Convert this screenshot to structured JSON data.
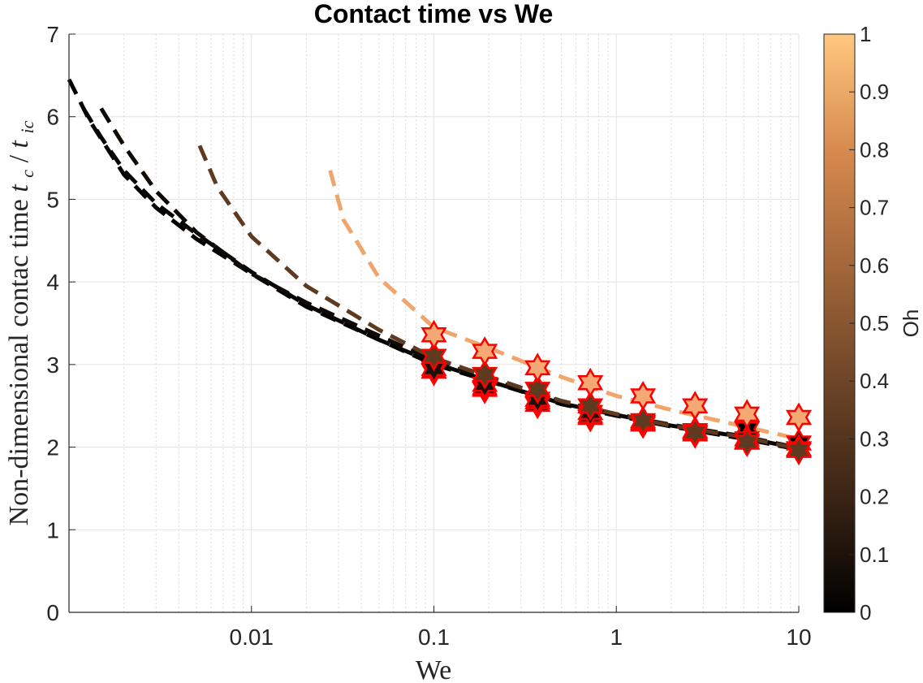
{
  "chart_data": {
    "type": "line",
    "title": "Contact time vs We",
    "xlabel": "We",
    "ylabel_text": "Non-dimensional contac time ",
    "ylabel_math": {
      "t1": "t",
      "s1": "c",
      "slash": "/",
      "t2": "t",
      "s2": "ic"
    },
    "xscale": "log",
    "xlim": [
      0.001,
      10
    ],
    "ylim": [
      0,
      7
    ],
    "xticks": [
      {
        "value": 0.01,
        "label": "0.01"
      },
      {
        "value": 0.1,
        "label": "0.1"
      },
      {
        "value": 1,
        "label": "1"
      },
      {
        "value": 10,
        "label": "10"
      }
    ],
    "yticks": [
      {
        "value": 0,
        "label": "0"
      },
      {
        "value": 1,
        "label": "1"
      },
      {
        "value": 2,
        "label": "2"
      },
      {
        "value": 3,
        "label": "3"
      },
      {
        "value": 4,
        "label": "4"
      },
      {
        "value": 5,
        "label": "5"
      },
      {
        "value": 6,
        "label": "6"
      },
      {
        "value": 7,
        "label": "7"
      }
    ],
    "grid": true,
    "colorbar": {
      "label": "Oh",
      "range": [
        0,
        1
      ],
      "ticks": [
        {
          "value": 0,
          "label": "0"
        },
        {
          "value": 0.1,
          "label": "0.1"
        },
        {
          "value": 0.2,
          "label": "0.2"
        },
        {
          "value": 0.3,
          "label": "0.3"
        },
        {
          "value": 0.4,
          "label": "0.4"
        },
        {
          "value": 0.5,
          "label": "0.5"
        },
        {
          "value": 0.6,
          "label": "0.6"
        },
        {
          "value": 0.7,
          "label": "0.7"
        },
        {
          "value": 0.8,
          "label": "0.8"
        },
        {
          "value": 0.9,
          "label": "0.9"
        },
        {
          "value": 1,
          "label": "1"
        }
      ],
      "colors": [
        "#000000",
        "#3a2414",
        "#6e4527",
        "#a3673a",
        "#d78a4e",
        "#ffc880"
      ]
    },
    "model_curves": [
      {
        "oh": 0.01,
        "color": "#000000",
        "x": [
          0.001,
          0.0013,
          0.002,
          0.003,
          0.005,
          0.01,
          0.02,
          0.05,
          0.1,
          0.2,
          0.5,
          1,
          2,
          5,
          10
        ],
        "y": [
          6.45,
          5.95,
          5.3,
          4.9,
          4.52,
          4.1,
          3.7,
          3.3,
          3.0,
          2.8,
          2.52,
          2.38,
          2.25,
          2.1,
          1.97
        ]
      },
      {
        "oh": 0.02,
        "color": "#080604",
        "x": [
          0.0012,
          0.0015,
          0.002,
          0.003,
          0.005,
          0.01,
          0.02,
          0.05,
          0.1,
          0.2,
          0.5,
          1,
          2,
          5,
          10
        ],
        "y": [
          6.1,
          5.75,
          5.35,
          4.95,
          4.58,
          4.12,
          3.72,
          3.3,
          3.02,
          2.8,
          2.53,
          2.39,
          2.26,
          2.12,
          1.98
        ]
      },
      {
        "oh": 0.04,
        "color": "#0f0a06",
        "x": [
          0.0015,
          0.002,
          0.003,
          0.005,
          0.01,
          0.02,
          0.05,
          0.1,
          0.2,
          0.5,
          1,
          2,
          5,
          10
        ],
        "y": [
          6.1,
          5.65,
          5.1,
          4.6,
          4.1,
          3.75,
          3.35,
          3.05,
          2.82,
          2.55,
          2.4,
          2.27,
          2.13,
          1.99
        ]
      },
      {
        "oh": 0.28,
        "color": "#5e3a20",
        "x": [
          0.0052,
          0.0065,
          0.01,
          0.02,
          0.05,
          0.1,
          0.2,
          0.5,
          1,
          2,
          5,
          10
        ],
        "y": [
          5.65,
          5.15,
          4.55,
          3.95,
          3.42,
          3.08,
          2.85,
          2.56,
          2.4,
          2.26,
          2.12,
          1.98
        ]
      },
      {
        "oh": 0.78,
        "color": "#f0a56c",
        "x": [
          0.027,
          0.032,
          0.05,
          0.1,
          0.2,
          0.5,
          1,
          2,
          5,
          10
        ],
        "y": [
          5.35,
          4.75,
          4.05,
          3.45,
          3.2,
          2.85,
          2.62,
          2.45,
          2.25,
          2.1
        ]
      }
    ],
    "simulation_points": [
      {
        "oh": 0.01,
        "color": "#000000",
        "x": [
          0.1,
          0.19,
          0.37,
          0.72,
          1.4,
          2.7,
          5.2,
          10
        ],
        "y": [
          2.92,
          2.7,
          2.52,
          2.36,
          2.28,
          2.18,
          2.22,
          2.05
        ]
      },
      {
        "oh": 0.02,
        "color": "#0a0604",
        "x": [
          0.1,
          0.19,
          0.37,
          0.72,
          1.4,
          2.7,
          5.2,
          10
        ],
        "y": [
          2.92,
          2.72,
          2.55,
          2.38,
          2.3,
          2.16,
          2.07,
          1.98
        ]
      },
      {
        "oh": 0.05,
        "color": "#1a110a",
        "x": [
          0.1,
          0.19,
          0.37,
          0.72,
          1.4,
          2.7,
          5.2,
          10
        ],
        "y": [
          2.95,
          2.76,
          2.58,
          2.42,
          2.3,
          2.2,
          2.1,
          1.98
        ]
      },
      {
        "oh": 0.3,
        "color": "#5e3a20",
        "x": [
          0.1,
          0.19,
          0.37,
          0.72,
          1.4,
          2.7,
          5.2,
          10
        ],
        "y": [
          3.1,
          2.88,
          2.7,
          2.5,
          2.32,
          2.18,
          2.06,
          1.96
        ]
      },
      {
        "oh": 0.8,
        "color": "#f4a874",
        "x": [
          0.1,
          0.19,
          0.37,
          0.72,
          1.4,
          2.7,
          5.2,
          10
        ],
        "y": [
          3.36,
          3.16,
          2.96,
          2.78,
          2.62,
          2.5,
          2.4,
          2.36
        ]
      }
    ],
    "marker_edge_color": "#ff0000"
  }
}
